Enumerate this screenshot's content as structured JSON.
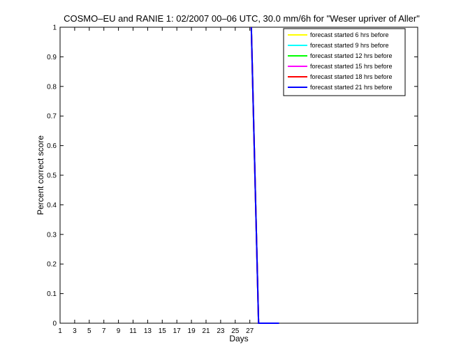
{
  "chart_data": {
    "type": "line",
    "title": "COSMO–EU and RANIE 1: 02/2007 00–06 UTC, 30.0 mm/6h for \"Weser upriver of Aller\"",
    "xlabel": "Days",
    "ylabel": "Percent correct score",
    "xlim": [
      1,
      50
    ],
    "ylim": [
      0,
      1
    ],
    "xticks": [
      1,
      3,
      5,
      7,
      9,
      11,
      13,
      15,
      17,
      19,
      21,
      23,
      25,
      27
    ],
    "yticks": [
      0,
      0.1,
      0.2,
      0.3,
      0.4,
      0.5,
      0.6,
      0.7,
      0.8,
      0.9,
      1
    ],
    "legend_position": "top-right",
    "series": [
      {
        "name": "forecast started 6 hrs before",
        "color": "#ffff00",
        "x": [
          27.2,
          28.2,
          31
        ],
        "y": [
          1,
          0,
          0
        ]
      },
      {
        "name": "forecast started 9 hrs before",
        "color": "#00ffff",
        "x": [
          27.2,
          28.2,
          31
        ],
        "y": [
          1,
          0,
          0
        ]
      },
      {
        "name": "forecast started 12 hrs before",
        "color": "#00ff00",
        "x": [
          27.2,
          28.2,
          31
        ],
        "y": [
          1,
          0,
          0
        ]
      },
      {
        "name": "forecast started 15 hrs before",
        "color": "#ff00ff",
        "x": [
          27.2,
          28.2,
          31
        ],
        "y": [
          1,
          0,
          0
        ]
      },
      {
        "name": "forecast started 18 hrs before",
        "color": "#ff0000",
        "x": [
          27.2,
          28.2,
          31
        ],
        "y": [
          1,
          0,
          0
        ]
      },
      {
        "name": "forecast started 21 hrs before",
        "color": "#0000ff",
        "x": [
          27.2,
          28.2,
          31
        ],
        "y": [
          1,
          0,
          0
        ]
      }
    ]
  }
}
